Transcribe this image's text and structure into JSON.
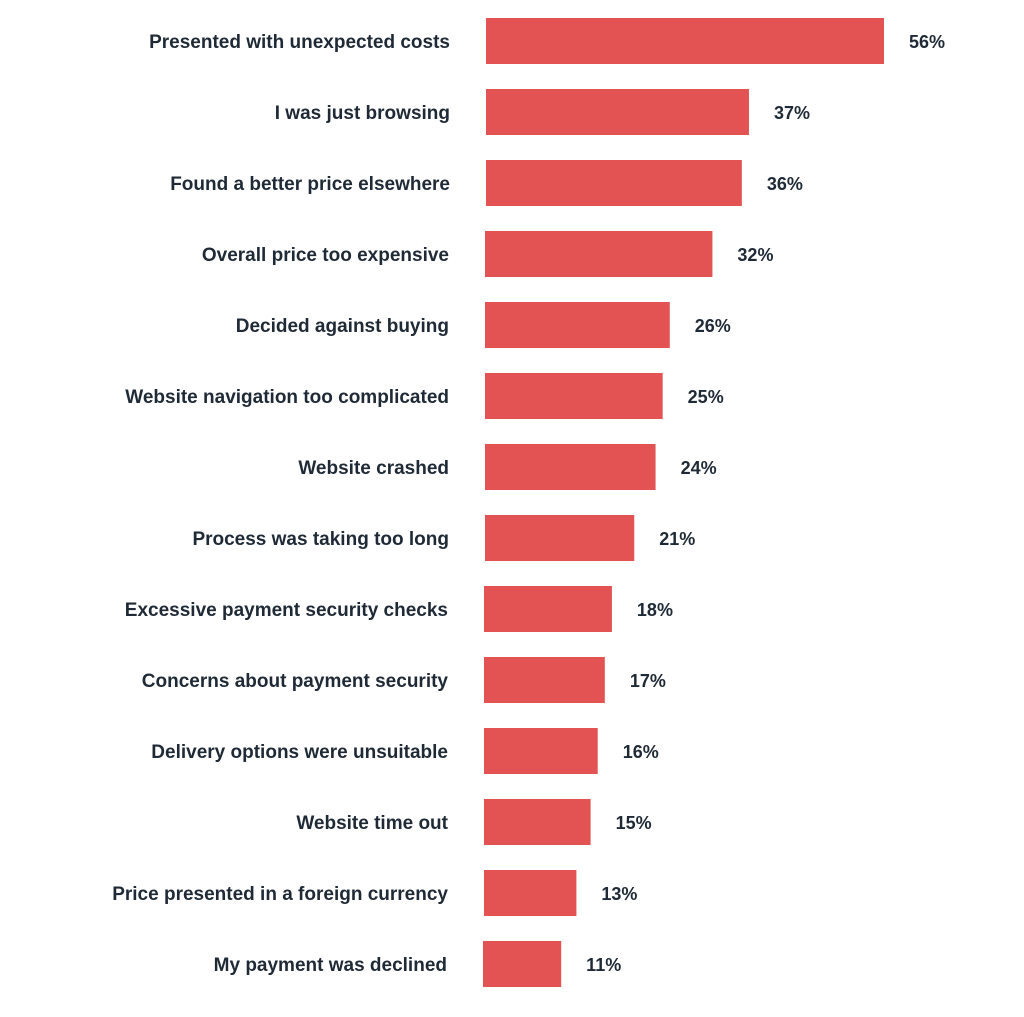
{
  "chart_data": {
    "type": "bar",
    "orientation": "horizontal",
    "title": "",
    "xlabel": "",
    "ylabel": "",
    "xlim": [
      0,
      56
    ],
    "grid": false,
    "bar_color": "#e35353",
    "text_color": "#1f2a36",
    "categories": [
      "Presented with unexpected costs",
      "I was just browsing",
      "Found a better price elsewhere",
      "Overall price too expensive",
      "Decided against buying",
      "Website navigation too complicated",
      "Website crashed",
      "Process was taking too long",
      "Excessive payment security checks",
      "Concerns about payment security",
      "Delivery options were unsuitable",
      "Website time out",
      "Price presented in a foreign currency",
      "My payment was declined"
    ],
    "values": [
      56,
      37,
      36,
      32,
      26,
      25,
      24,
      21,
      18,
      17,
      16,
      15,
      13,
      11
    ],
    "value_labels": [
      "56%",
      "37%",
      "36%",
      "32%",
      "26%",
      "25%",
      "24%",
      "21%",
      "18%",
      "17%",
      "16%",
      "15%",
      "13%",
      "11%"
    ]
  }
}
